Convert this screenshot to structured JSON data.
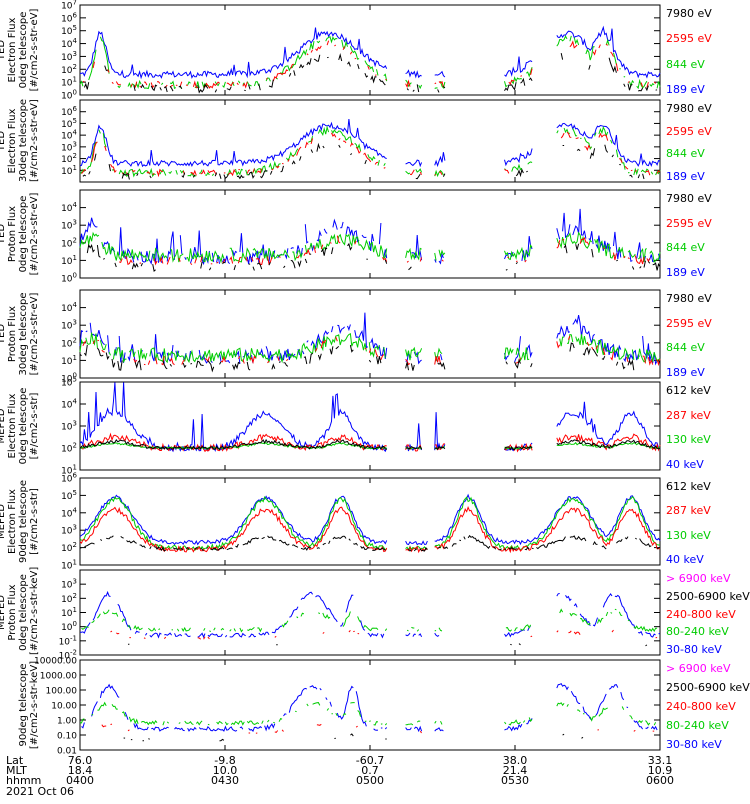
{
  "colors": {
    "blue": "#0000ff",
    "red": "#ff0000",
    "green": "#00cc00",
    "black": "#000000",
    "magenta": "#ff00ff"
  },
  "chart_data": [
    {
      "type": "line",
      "ylabel": [
        "TED",
        "Electron Flux",
        "0deg telescope",
        "[#/cm2-s-str-eV]"
      ],
      "ylim": [
        1,
        10000000
      ],
      "yscale": "log",
      "ytick_labels": [
        "10^0",
        "10^1",
        "10^2",
        "10^3",
        "10^4",
        "10^5",
        "10^6",
        "10^7"
      ],
      "series": [
        {
          "name": "7980 eV",
          "color": "black"
        },
        {
          "name": "2595 eV",
          "color": "red"
        },
        {
          "name": "844 eV",
          "color": "green"
        },
        {
          "name": "189 eV",
          "color": "blue"
        }
      ]
    },
    {
      "type": "line",
      "ylabel": [
        "TED",
        "Electron Flux",
        "30deg telescope",
        "[#/cm2-s-str-eV]"
      ],
      "ylim": [
        1,
        10000000
      ],
      "yscale": "log",
      "ytick_labels": [
        "10^1",
        "10^2",
        "10^3",
        "10^4",
        "10^5",
        "10^6"
      ],
      "series": [
        {
          "name": "7980 eV",
          "color": "black"
        },
        {
          "name": "2595 eV",
          "color": "red"
        },
        {
          "name": "844 eV",
          "color": "green"
        },
        {
          "name": "189 eV",
          "color": "blue"
        }
      ]
    },
    {
      "type": "line",
      "ylabel": [
        "TED",
        "Proton Flux",
        "0deg telescope",
        "[#/cm2-s-str-eV]"
      ],
      "ylim": [
        1,
        100000
      ],
      "yscale": "log",
      "ytick_labels": [
        "10^0",
        "10^1",
        "10^2",
        "10^3",
        "10^4"
      ],
      "series": [
        {
          "name": "7980 eV",
          "color": "black"
        },
        {
          "name": "2595 eV",
          "color": "red"
        },
        {
          "name": "844 eV",
          "color": "green"
        },
        {
          "name": "189 eV",
          "color": "blue"
        }
      ]
    },
    {
      "type": "line",
      "ylabel": [
        "TED",
        "Proton Flux",
        "30deg telescope",
        "[#/cm2-s-str-eV]"
      ],
      "ylim": [
        1,
        100000
      ],
      "yscale": "log",
      "ytick_labels": [
        "10^0",
        "10^1",
        "10^2",
        "10^3",
        "10^4"
      ],
      "series": [
        {
          "name": "7980 eV",
          "color": "black"
        },
        {
          "name": "2595 eV",
          "color": "red"
        },
        {
          "name": "844 eV",
          "color": "green"
        },
        {
          "name": "189 eV",
          "color": "blue"
        }
      ]
    },
    {
      "type": "line",
      "ylabel": [
        "MEPED",
        "Electron Flux",
        "0deg telescope",
        "[#/cm2-s-str]"
      ],
      "ylim": [
        10,
        100000
      ],
      "yscale": "log",
      "ytick_labels": [
        "10^1",
        "10^2",
        "10^3",
        "10^4",
        "10^5"
      ],
      "series": [
        {
          "name": "612 keV",
          "color": "black"
        },
        {
          "name": "287 keV",
          "color": "red"
        },
        {
          "name": "130 keV",
          "color": "green"
        },
        {
          "name": "40 keV",
          "color": "blue"
        }
      ]
    },
    {
      "type": "line",
      "ylabel": [
        "MEPED",
        "Electron Flux",
        "90deg telescope",
        "[#/cm2-s-str]"
      ],
      "ylim": [
        10,
        1000000
      ],
      "yscale": "log",
      "ytick_labels": [
        "10^1",
        "10^2",
        "10^3",
        "10^4",
        "10^5",
        "10^6"
      ],
      "series": [
        {
          "name": "612 keV",
          "color": "black"
        },
        {
          "name": "287 keV",
          "color": "red"
        },
        {
          "name": "130 keV",
          "color": "green"
        },
        {
          "name": "40 keV",
          "color": "blue"
        }
      ]
    },
    {
      "type": "line",
      "ylabel": [
        "MEPED",
        "Proton Flux",
        "0deg telescope",
        "[#/cm2-s-str-keV]"
      ],
      "ylim": [
        0.01,
        10000
      ],
      "yscale": "log",
      "ytick_labels": [
        "10^-2",
        "10^-1",
        "10^0",
        "10^1",
        "10^2",
        "10^3"
      ],
      "series": [
        {
          "name": "> 6900 keV",
          "color": "magenta"
        },
        {
          "name": "2500-6900 keV",
          "color": "black"
        },
        {
          "name": "240-800 keV",
          "color": "red"
        },
        {
          "name": "80-240 keV",
          "color": "green"
        },
        {
          "name": "30-80 keV",
          "color": "blue"
        }
      ]
    },
    {
      "type": "line",
      "ylabel": [
        "90deg telescope",
        "[#/cm2-s-str-keV]"
      ],
      "ylim": [
        0.01,
        10000
      ],
      "yscale": "log",
      "ytick_labels": [
        "0.01",
        "0.10",
        "1.00",
        "10.00",
        "100.00",
        "1000.00",
        "10000.00"
      ],
      "series": [
        {
          "name": "> 6900 keV",
          "color": "magenta"
        },
        {
          "name": "2500-6900 keV",
          "color": "black"
        },
        {
          "name": "240-800 keV",
          "color": "red"
        },
        {
          "name": "80-240 keV",
          "color": "green"
        },
        {
          "name": "30-80 keV",
          "color": "blue"
        }
      ]
    }
  ],
  "xaxis": {
    "row_labels": [
      "Lat",
      "MLT",
      "hhmm"
    ],
    "ticks": [
      {
        "lat": "76.0",
        "mlt": "18.4",
        "hhmm": "0400"
      },
      {
        "lat": "-9.8",
        "mlt": "10.0",
        "hhmm": "0430"
      },
      {
        "lat": "-60.7",
        "mlt": "0.7",
        "hhmm": "0500"
      },
      {
        "lat": "38.0",
        "mlt": "21.4",
        "hhmm": "0530"
      },
      {
        "lat": "33.1",
        "mlt": "10.9",
        "hhmm": "0600"
      }
    ],
    "date": "2021 Oct 06"
  }
}
